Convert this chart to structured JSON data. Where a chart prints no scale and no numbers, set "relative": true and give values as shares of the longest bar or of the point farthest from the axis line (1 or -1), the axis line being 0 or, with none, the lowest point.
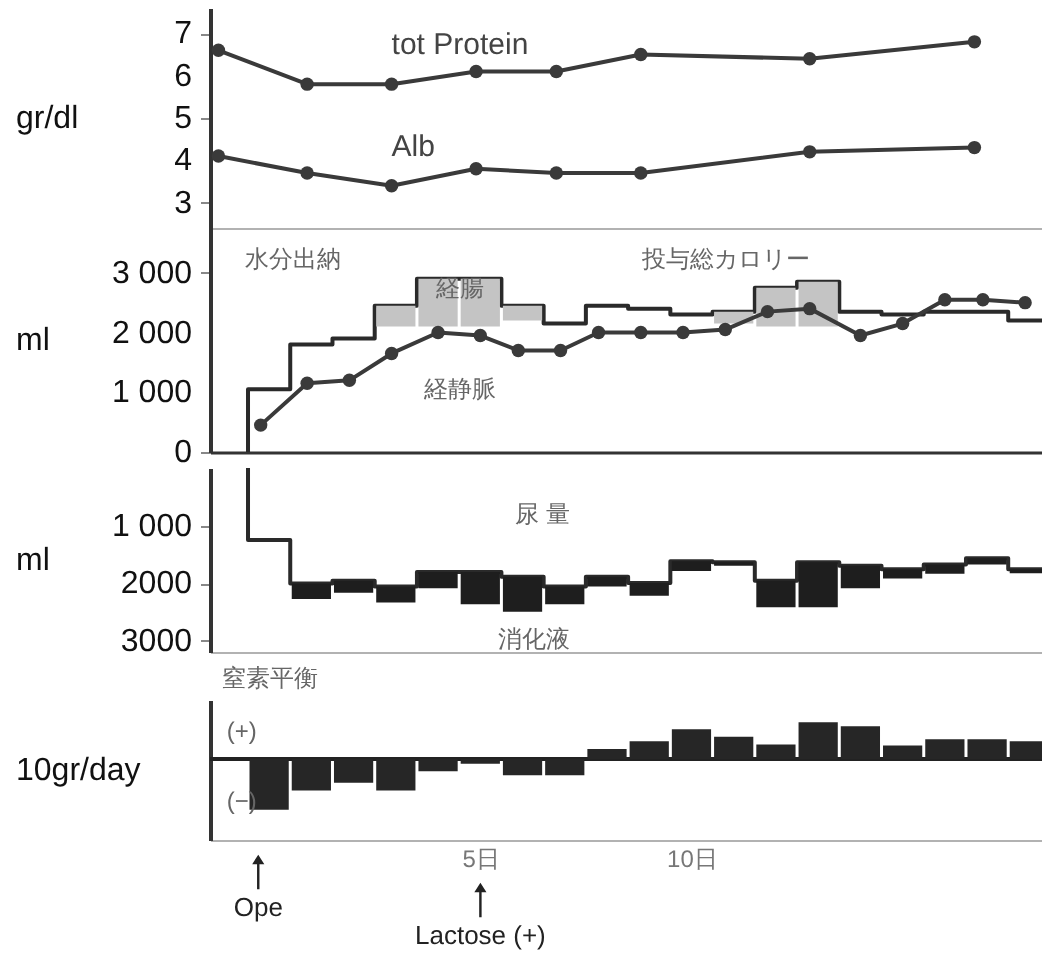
{
  "chart_data": [
    {
      "type": "line",
      "ylabel": "gr/dl",
      "xlim": [
        -1.4,
        18.3
      ],
      "ylim": [
        2.4,
        7.6
      ],
      "yticks": [
        3,
        4,
        5,
        6,
        7
      ],
      "tick_labels": "y",
      "marker": "circle",
      "series": [
        {
          "name": "tot Protein",
          "color": "#3a3a3a",
          "x": [
            -1.2,
            0.9,
            2.9,
            4.9,
            6.8,
            8.8,
            12.8,
            16.7
          ],
          "values": [
            6.6,
            5.8,
            5.8,
            6.1,
            6.1,
            6.5,
            6.4,
            6.8
          ]
        },
        {
          "name": "Alb",
          "color": "#3a3a3a",
          "x": [
            -1.2,
            0.9,
            2.9,
            4.9,
            6.8,
            8.8,
            12.8,
            16.7
          ],
          "values": [
            4.1,
            3.7,
            3.4,
            3.8,
            3.7,
            3.7,
            4.2,
            4.3
          ]
        }
      ]
    },
    {
      "type": "step",
      "ylabel": "ml",
      "xlim": [
        -1.4,
        18.3
      ],
      "ylim": [
        0,
        3750
      ],
      "yticks": [
        {
          "value": 0,
          "label": "0"
        },
        {
          "value": 1000,
          "label": "1 000"
        },
        {
          "value": 2000,
          "label": "2 000"
        },
        {
          "value": 3000,
          "label": "3 000"
        }
      ],
      "tick_labels": "y",
      "series": [
        {
          "color": "#2a2a2a",
          "x": [
            -0.5,
            -0.5,
            0.5,
            1.5,
            2.5,
            3.5,
            4.5,
            5.5,
            6.5,
            7.5,
            8.5,
            9.5,
            10.5,
            11.5,
            12.5,
            13.5,
            14.5,
            15.5,
            16.5,
            17.5,
            18.3
          ],
          "values": [
            0,
            1050,
            1800,
            1900,
            2450,
            2900,
            2900,
            2450,
            2150,
            2450,
            2400,
            2300,
            2350,
            2750,
            2850,
            2350,
            2300,
            2350,
            2350,
            2200,
            2200
          ]
        },
        {
          "type": "bar",
          "color": "#c4c4c4",
          "x": [
            3,
            4,
            5,
            6,
            11,
            12,
            13
          ],
          "base": [
            2100,
            2100,
            2100,
            2200,
            2150,
            2100,
            2100
          ],
          "values": [
            350,
            800,
            800,
            250,
            200,
            650,
            750
          ]
        },
        {
          "type": "line",
          "color": "#3a3a3a",
          "marker": "circle",
          "x": [
            -0.2,
            0.9,
            1.9,
            2.9,
            4.0,
            5.0,
            5.9,
            6.9,
            7.8,
            8.8,
            9.8,
            10.8,
            11.8,
            12.8,
            14.0,
            15.0,
            16.0,
            16.9,
            17.9
          ],
          "values": [
            450,
            1150,
            1200,
            1650,
            2000,
            1950,
            1700,
            1700,
            2000,
            2000,
            2000,
            2050,
            2350,
            2400,
            1950,
            2150,
            2550,
            2550,
            2500
          ]
        }
      ],
      "annotations": [
        "水分出納",
        "投与総カロリー",
        "経腸",
        "経静脈"
      ]
    },
    {
      "type": "step",
      "ylabel": "ml",
      "xlim": [
        -1.4,
        18.3
      ],
      "ylim": [
        3200,
        0
      ],
      "yticks": [
        {
          "value": 1000,
          "label": "1 000"
        },
        {
          "value": 2000,
          "label": "2000"
        },
        {
          "value": 3000,
          "label": "3000"
        }
      ],
      "tick_labels": "y",
      "series": [
        {
          "color": "#2a2a2a",
          "x": [
            -0.5,
            -0.5,
            0.5,
            1.5,
            2.5,
            3.5,
            4.5,
            5.5,
            6.5,
            7.5,
            8.5,
            9.5,
            10.5,
            11.5,
            12.5,
            13.5,
            14.5,
            15.5,
            16.5,
            17.5,
            18.3
          ],
          "values": [
            0,
            1250,
            2010,
            1960,
            2060,
            1810,
            1810,
            1890,
            2060,
            1890,
            2000,
            1620,
            1640,
            1960,
            1640,
            1700,
            1760,
            1680,
            1570,
            1760,
            1760
          ]
        },
        {
          "type": "bar",
          "color": "#1e1e1e",
          "x": [
            1,
            2,
            3,
            4,
            5,
            6,
            7,
            8,
            9,
            10,
            11,
            12,
            13,
            14,
            15,
            16,
            17,
            18
          ],
          "base": [
            2010,
            1960,
            2060,
            1810,
            1810,
            1890,
            2060,
            1890,
            2000,
            1620,
            1640,
            1960,
            1640,
            1700,
            1760,
            1680,
            1570,
            1760
          ],
          "values": [
            270,
            210,
            280,
            280,
            560,
            610,
            310,
            170,
            220,
            170,
            60,
            460,
            780,
            390,
            160,
            160,
            110,
            70
          ]
        }
      ],
      "annotations": [
        "尿 量",
        "消化液"
      ]
    },
    {
      "type": "bar",
      "title": "窒素平衡",
      "ylabel": "10gr/day",
      "relative": true,
      "xlim": [
        -1.4,
        18.3
      ],
      "xticks": [
        {
          "value": 5,
          "label": "5日"
        },
        {
          "value": 10,
          "label": "10日"
        }
      ],
      "tick_labels": "x",
      "x": [
        0,
        1,
        2,
        3,
        4,
        5,
        6,
        7,
        8,
        9,
        10,
        11,
        12,
        13,
        14,
        15,
        16,
        17,
        18
      ],
      "series": [
        {
          "color": "#262626",
          "values": [
            -1,
            -0.62,
            -0.47,
            -0.62,
            -0.24,
            -0.09,
            -0.32,
            -0.32,
            0.2,
            0.35,
            0.59,
            0.44,
            0.29,
            0.73,
            0.65,
            0.27,
            0.39,
            0.39,
            0.35
          ]
        }
      ],
      "annotations": [
        "(+)",
        "(−)",
        "Ope",
        "Lactose (+)"
      ]
    }
  ]
}
